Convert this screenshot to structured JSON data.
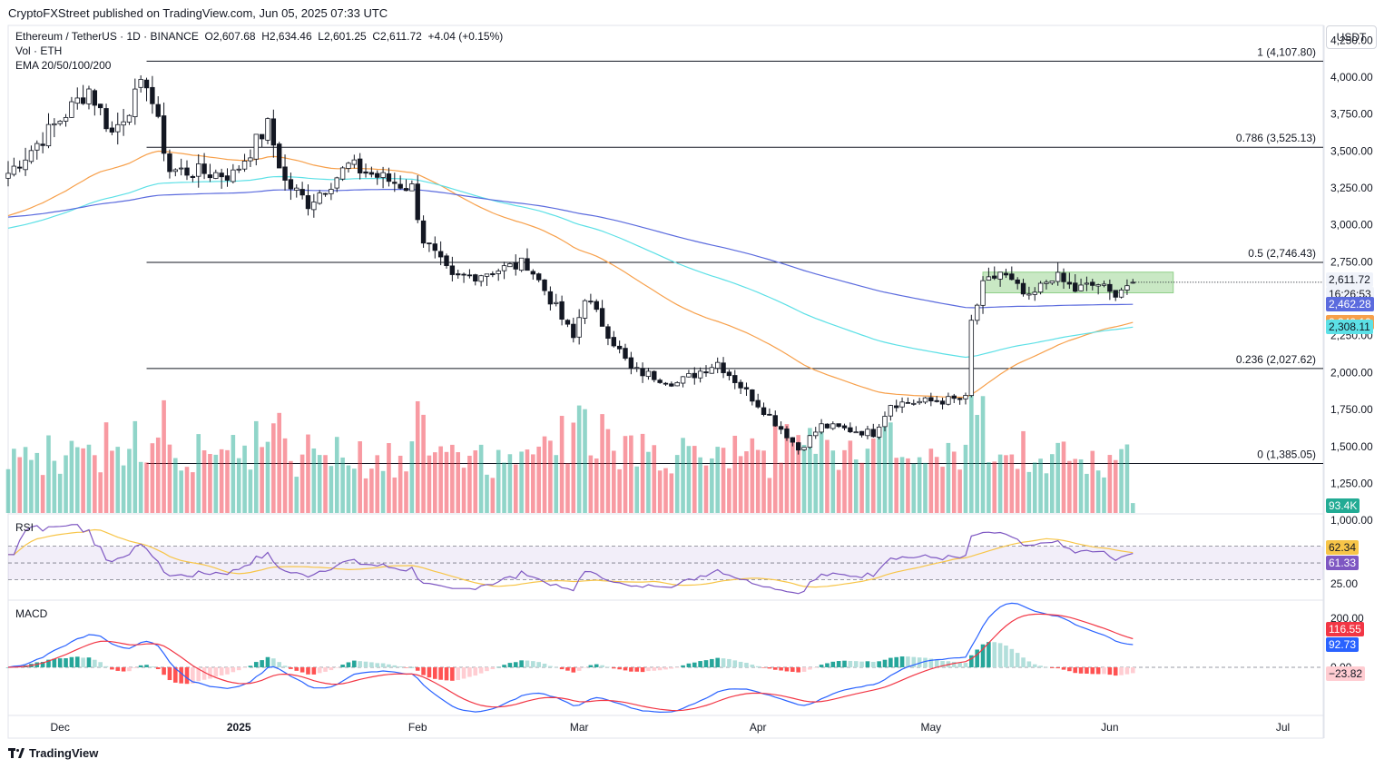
{
  "header": {
    "publisher": "CryptoFXStreet published on TradingView.com, Jun 05, 2025 07:33 UTC"
  },
  "legend": {
    "symbol": "Ethereum / TetherUS · 1D · BINANCE",
    "open": "O2,607.68",
    "high": "H2,634.46",
    "low": "L2,601.25",
    "close": "C2,611.72",
    "change": "+4.04 (+0.15%)",
    "vol": "Vol · ETH",
    "ema": "EMA 20/50/100/200"
  },
  "currency": "USDT",
  "colors": {
    "up": "#22ab94",
    "down": "#f23645",
    "ema50": "#f7a04b",
    "ema100": "#5ce0e6",
    "ema200": "#5b6bde",
    "rsi": "#7e57c2",
    "rsi_ma": "#f7c548",
    "macd": "#2962ff",
    "signal": "#f23645",
    "zone": "#b7e0b0"
  },
  "fib_labels": [
    "1 (4,107.80)",
    "0.786 (3,525.13)",
    "0.5 (2,746.43)",
    "0.236 (2,027.62)",
    "0 (1,385.05)"
  ],
  "price_tags": {
    "last": "2,611.72",
    "countdown": "16:26:53",
    "ema200": "2,462.28",
    "ema50": "2,340.10",
    "ema100": "2,308.11",
    "volume": "93.4K"
  },
  "rsi": {
    "label": "RSI",
    "value": "61.33",
    "ma_value": "62.34",
    "ticks": [
      "50.00",
      "25.00"
    ]
  },
  "macd": {
    "label": "MACD",
    "macd_value": "92.73",
    "signal_value": "116.55",
    "hist_value": "−23.82",
    "ticks": [
      "200.00",
      "0.00"
    ]
  },
  "footer": {
    "brand": "TradingView"
  },
  "chart_data": {
    "type": "candlestick",
    "x_range": [
      "2024-11-22",
      "2025-07-08"
    ],
    "ylim": [
      1050,
      4350
    ],
    "y_ticks": [
      4250,
      4000,
      3750,
      3500,
      3250,
      3000,
      2750,
      2500,
      2250,
      2000,
      1750,
      1500,
      1250,
      1000
    ],
    "y_tick_labels": [
      "4,250.00",
      "4,000.00",
      "3,750.00",
      "3,500.00",
      "3,250.00",
      "3,000.00",
      "2,750.00",
      "2,500.00",
      "2,250.00",
      "2,000.00",
      "1,750.00",
      "1,500.00",
      "1,250.00",
      "1,000.00"
    ],
    "x_ticks": [
      {
        "label": "Dec",
        "date": "2024-12-01"
      },
      {
        "label": "2025",
        "date": "2025-01-01"
      },
      {
        "label": "Feb",
        "date": "2025-02-01"
      },
      {
        "label": "Mar",
        "date": "2025-03-01"
      },
      {
        "label": "Apr",
        "date": "2025-04-01"
      },
      {
        "label": "May",
        "date": "2025-05-01"
      },
      {
        "label": "Jun",
        "date": "2025-06-01"
      },
      {
        "label": "Jul",
        "date": "2025-07-01"
      }
    ],
    "fib_levels": [
      {
        "ratio": "1",
        "price": 4107.8,
        "start": "2024-12-16"
      },
      {
        "ratio": "0.786",
        "price": 3525.13,
        "start": "2024-12-16"
      },
      {
        "ratio": "0.5",
        "price": 2746.43,
        "start": "2024-12-16"
      },
      {
        "ratio": "0.236",
        "price": 2027.62,
        "start": "2024-12-16"
      },
      {
        "ratio": "0",
        "price": 1385.05,
        "start": "2024-12-16"
      }
    ],
    "consolidation_zone": {
      "start": "2025-05-10",
      "end": "2025-06-12",
      "low": 2540,
      "high": 2680
    },
    "anchors": [
      {
        "date": "2024-11-22",
        "close": 3350
      },
      {
        "date": "2024-11-28",
        "close": 3590
      },
      {
        "date": "2024-12-06",
        "close": 3920
      },
      {
        "date": "2024-12-10",
        "close": 3620
      },
      {
        "date": "2024-12-16",
        "close": 3980
      },
      {
        "date": "2024-12-20",
        "close": 3370
      },
      {
        "date": "2024-12-31",
        "close": 3340
      },
      {
        "date": "2025-01-06",
        "close": 3670
      },
      {
        "date": "2025-01-09",
        "close": 3290
      },
      {
        "date": "2025-01-13",
        "close": 3150
      },
      {
        "date": "2025-01-20",
        "close": 3400
      },
      {
        "date": "2025-01-27",
        "close": 3300
      },
      {
        "date": "2025-01-31",
        "close": 3250
      },
      {
        "date": "2025-02-02",
        "close": 2900
      },
      {
        "date": "2025-02-07",
        "close": 2630
      },
      {
        "date": "2025-02-20",
        "close": 2740
      },
      {
        "date": "2025-02-24",
        "close": 2500
      },
      {
        "date": "2025-02-28",
        "close": 2230
      },
      {
        "date": "2025-03-02",
        "close": 2520
      },
      {
        "date": "2025-03-10",
        "close": 2020
      },
      {
        "date": "2025-03-18",
        "close": 1930
      },
      {
        "date": "2025-03-25",
        "close": 2070
      },
      {
        "date": "2025-03-31",
        "close": 1830
      },
      {
        "date": "2025-04-06",
        "close": 1580
      },
      {
        "date": "2025-04-08",
        "close": 1480
      },
      {
        "date": "2025-04-12",
        "close": 1640
      },
      {
        "date": "2025-04-21",
        "close": 1590
      },
      {
        "date": "2025-04-24",
        "close": 1790
      },
      {
        "date": "2025-05-07",
        "close": 1820
      },
      {
        "date": "2025-05-08",
        "close": 2340
      },
      {
        "date": "2025-05-10",
        "close": 2580
      },
      {
        "date": "2025-05-13",
        "close": 2680
      },
      {
        "date": "2025-05-18",
        "close": 2490
      },
      {
        "date": "2025-05-22",
        "close": 2660
      },
      {
        "date": "2025-05-26",
        "close": 2560
      },
      {
        "date": "2025-05-30",
        "close": 2600
      },
      {
        "date": "2025-06-01",
        "close": 2530
      },
      {
        "date": "2025-06-05",
        "close": 2611.72
      }
    ],
    "last_candle": {
      "date": "2025-06-05",
      "open": 2607.68,
      "high": 2634.46,
      "low": 2601.25,
      "close": 2611.72
    },
    "ema_last": {
      "ema50": 2340.1,
      "ema100": 2308.11,
      "ema200": 2462.28
    },
    "ema_start": {
      "ema50": 3050,
      "ema100": 2970,
      "ema200": 3050
    },
    "volume_last": 93400,
    "rsi_last": 61.33,
    "rsi_ma_last": 62.34,
    "rsi_bands": [
      70,
      50,
      30
    ],
    "macd_last": 92.73,
    "signal_last": 116.55,
    "hist_last": -23.82
  }
}
